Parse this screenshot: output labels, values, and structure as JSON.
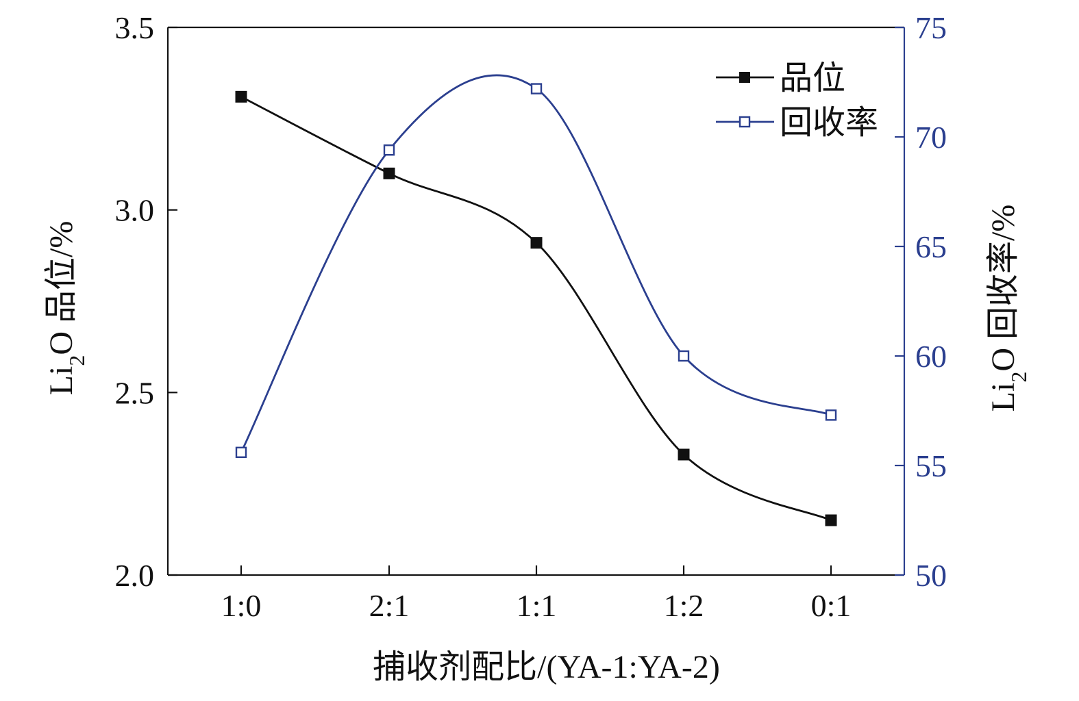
{
  "chart_data": {
    "type": "line",
    "categories": [
      "1:0",
      "2:1",
      "1:1",
      "1:2",
      "0:1"
    ],
    "xlabel": "捕收剂配比/(YA-1:YA-2)",
    "ylabel_left": {
      "prefix": "Li",
      "sub": "2",
      "suffix": "O 品位/%"
    },
    "ylabel_right": {
      "prefix": "Li",
      "sub": "2",
      "suffix": "O 回收率/%"
    },
    "ylim_left": [
      2.0,
      3.5
    ],
    "ylim_right": [
      50,
      75
    ],
    "yticks_left": [
      2.0,
      2.5,
      3.0,
      3.5
    ],
    "yticks_left_labels": [
      "2.0",
      "2.5",
      "3.0",
      "3.5"
    ],
    "yticks_right": [
      50,
      55,
      60,
      65,
      70,
      75
    ],
    "yticks_right_labels": [
      "50",
      "55",
      "60",
      "65",
      "70",
      "75"
    ],
    "series": [
      {
        "name": "品位",
        "axis": "left",
        "values": [
          3.31,
          3.1,
          2.91,
          2.33,
          2.15
        ],
        "color": "#111111",
        "marker": "filled-square"
      },
      {
        "name": "回收率",
        "axis": "right",
        "values": [
          55.6,
          69.4,
          72.2,
          60.0,
          57.3
        ],
        "color": "#2b3f8f",
        "marker": "open-square"
      }
    ],
    "legend_position": "top-right",
    "grid": false
  },
  "colors": {
    "left_axis": "#111111",
    "right_axis": "#2b3f8f",
    "background": "#ffffff"
  }
}
